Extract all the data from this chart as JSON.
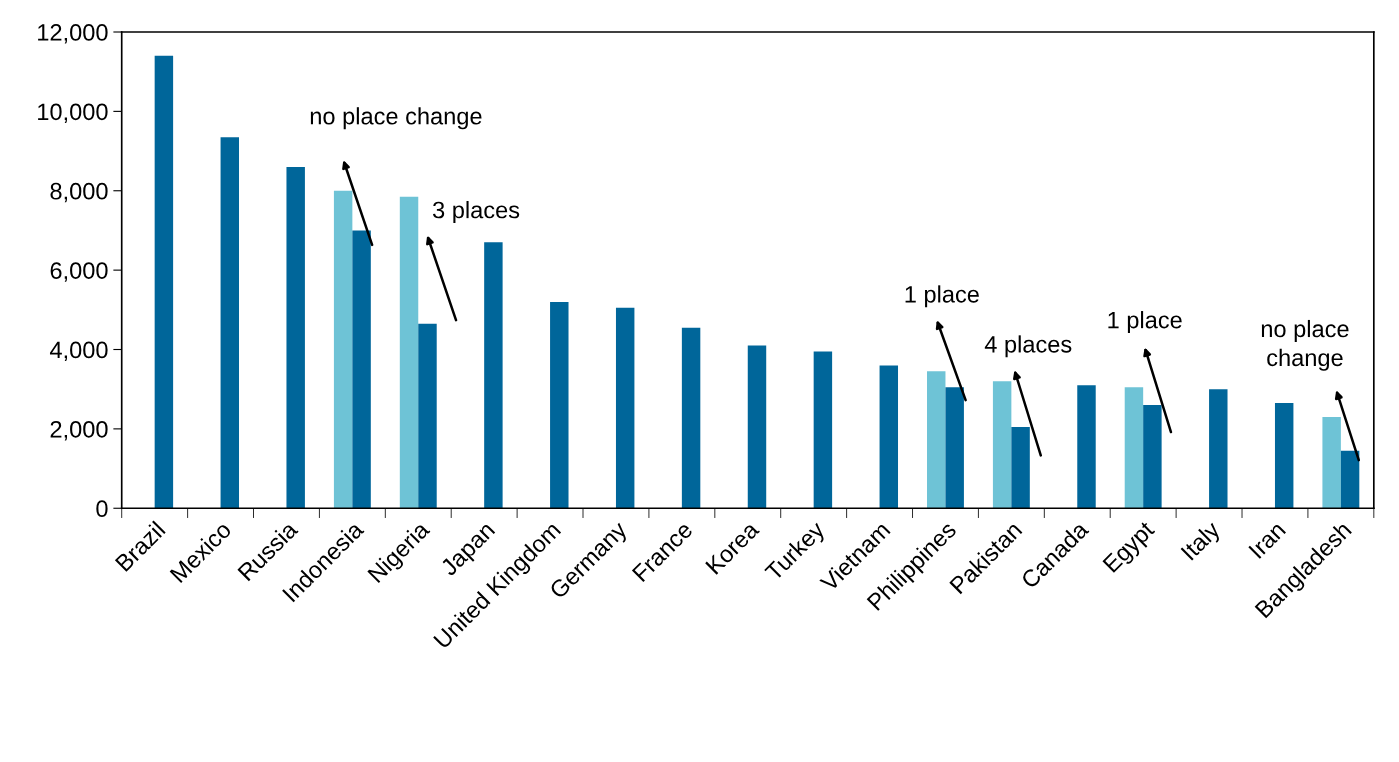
{
  "chart_data": {
    "type": "bar",
    "categories": [
      "Brazil",
      "Mexico",
      "Russia",
      "Indonesia",
      "Nigeria",
      "Japan",
      "United Kingdom",
      "Germany",
      "France",
      "Korea",
      "Turkey",
      "Vietnam",
      "Philippines",
      "Pakistan",
      "Canada",
      "Egypt",
      "Italy",
      "Iran",
      "Bangladesh"
    ],
    "series": [
      {
        "color": "#6ec3d6",
        "values": [
          null,
          null,
          null,
          8000,
          7850,
          null,
          null,
          null,
          null,
          null,
          null,
          null,
          3450,
          3200,
          null,
          3050,
          null,
          null,
          2300
        ]
      },
      {
        "color": "#00669a",
        "values": [
          11400,
          9350,
          8600,
          7000,
          4650,
          6700,
          5200,
          5050,
          4550,
          4100,
          3950,
          3600,
          3050,
          2050,
          3100,
          2600,
          3000,
          2650,
          1450
        ]
      }
    ],
    "ylim": [
      0,
      12000
    ],
    "yticks": [
      {
        "value": 0,
        "label": "0"
      },
      {
        "value": 2000,
        "label": "2,000"
      },
      {
        "value": 4000,
        "label": "4,000"
      },
      {
        "value": 6000,
        "label": "6,000"
      },
      {
        "value": 8000,
        "label": "8,000"
      },
      {
        "value": 10000,
        "label": "10,000"
      },
      {
        "value": 12000,
        "label": "12,000"
      }
    ],
    "grid": false,
    "annotations": [
      "no place change",
      "3 places",
      "1 place",
      "4 places",
      "1 place",
      "no place\nchange"
    ]
  }
}
